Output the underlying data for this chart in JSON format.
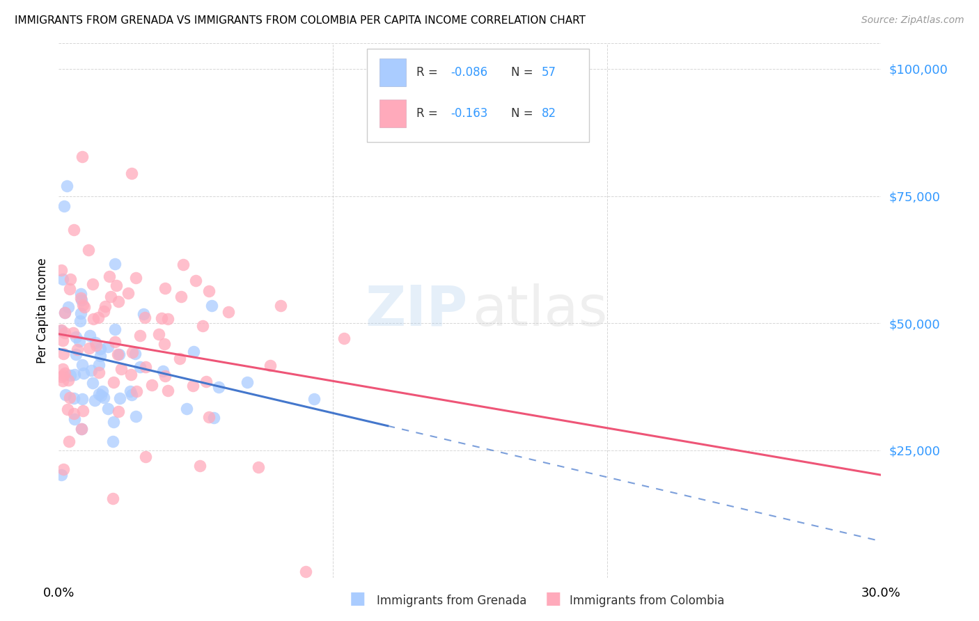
{
  "title": "IMMIGRANTS FROM GRENADA VS IMMIGRANTS FROM COLOMBIA PER CAPITA INCOME CORRELATION CHART",
  "source": "Source: ZipAtlas.com",
  "ylabel": "Per Capita Income",
  "ytick_color": "#3399ff",
  "xmin": 0.0,
  "xmax": 0.3,
  "ymin": 0,
  "ymax": 105000,
  "grenada_color": "#aaccff",
  "colombia_color": "#ffaabb",
  "grenada_line_color": "#4477cc",
  "colombia_line_color": "#ee5577",
  "background_color": "#ffffff",
  "grid_color": "#cccccc",
  "grenada_R": -0.086,
  "grenada_N": 57,
  "colombia_R": -0.163,
  "colombia_N": 82
}
